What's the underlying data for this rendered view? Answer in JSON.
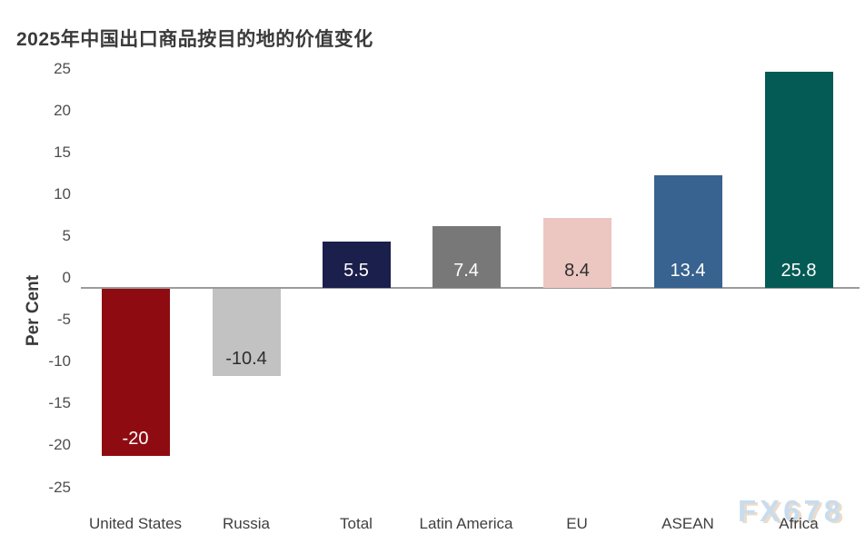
{
  "title": "2025年中国出口商品按目的地的价值变化",
  "watermark": "FX678",
  "chart_data": {
    "type": "bar",
    "title": "2025年中国出口商品按目的地的价值变化",
    "xlabel": "",
    "ylabel": "Per Cent",
    "ylim": [
      -25,
      25
    ],
    "yticks": [
      25,
      20,
      15,
      10,
      5,
      0,
      -5,
      -10,
      -15,
      -20,
      -25
    ],
    "grid": false,
    "legend": false,
    "categories": [
      "United States",
      "Russia",
      "Total",
      "Latin America",
      "EU",
      "ASEAN",
      "Africa"
    ],
    "values": [
      -20,
      -10.4,
      5.5,
      7.4,
      8.4,
      13.4,
      25.8
    ],
    "bar_labels": [
      "-20",
      "-10.4",
      "5.5",
      "7.4",
      "8.4",
      "13.4",
      "25.8"
    ],
    "bar_colors": [
      "#8e0c11",
      "#c2c2c2",
      "#1b1f4b",
      "#787878",
      "#ecc6c1",
      "#38628f",
      "#045a54"
    ],
    "bar_label_colors": [
      "#ffffff",
      "#2e2e2e",
      "#ffffff",
      "#ffffff",
      "#2e2e2e",
      "#ffffff",
      "#ffffff"
    ]
  },
  "colors": {
    "background": "#ffffff",
    "baseline": "#9b9b9b",
    "title_text": "#3a3a3a",
    "tick_text": "#4e4e4e",
    "category_text": "#3f3f3f",
    "watermark_fill": "#c3d9ed",
    "watermark_shadow": "#e9d9c6"
  }
}
